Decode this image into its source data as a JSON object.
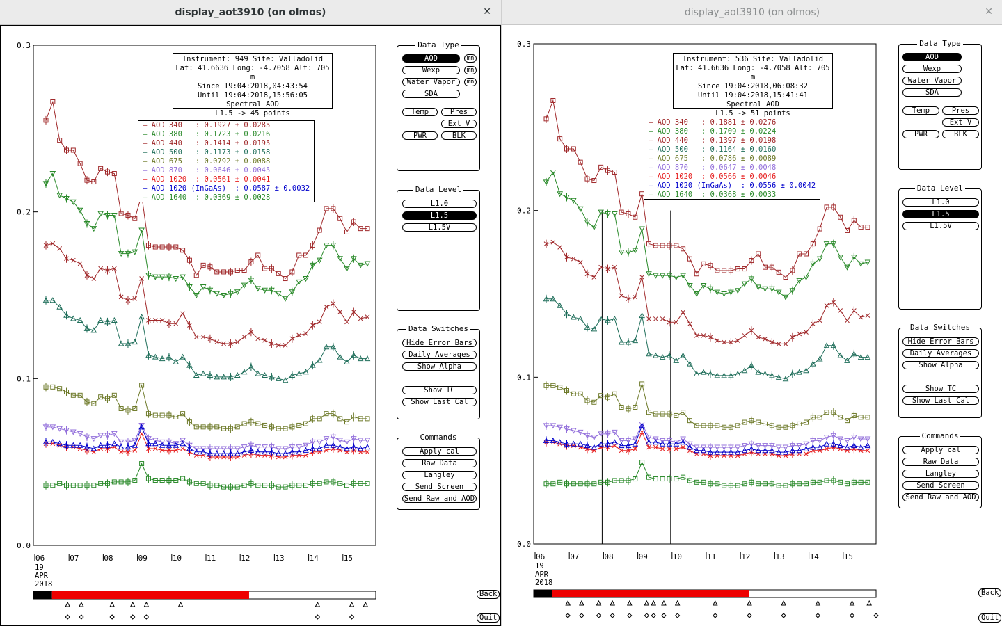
{
  "windows": [
    {
      "title": "display_aot3910 (on olmos)",
      "close_glyph": "✕",
      "info": [
        "Instrument: 949 Site: Valladolid",
        "Lat: 41.6636 Long: -4.7058 Alt: 705 m",
        "Since 19:04:2018,04:43:54",
        "Until 19:04:2018,15:56:05",
        "Spectral AOD",
        "L1.5 -> 45 points"
      ],
      "legend": [
        {
          "label": "AOD 340   : 0.1927 ± 0.0285",
          "color": "#a0282a"
        },
        {
          "label": "AOD 380   : 0.1723 ± 0.0216",
          "color": "#2a8a2a"
        },
        {
          "label": "AOD 440   : 0.1414 ± 0.0195",
          "color": "#a0282a"
        },
        {
          "label": "AOD 500   : 0.1173 ± 0.0158",
          "color": "#1f6e5a"
        },
        {
          "label": "AOD 675   : 0.0792 ± 0.0088",
          "color": "#6e7a2a"
        },
        {
          "label": "AOD 870   : 0.0646 ± 0.0045",
          "color": "#9370db"
        },
        {
          "label": "AOD 1020  : 0.0561 ± 0.0041",
          "color": "#e61e1e"
        },
        {
          "label": "AOD 1020 (InGaAs)  : 0.0587 ± 0.0032",
          "color": "#0000cc"
        },
        {
          "label": "AOD 1640  : 0.0369 ± 0.0028",
          "color": "#2a8a2a"
        }
      ],
      "yticks": [
        "0.3",
        "0.2",
        "0.1",
        "0.0"
      ],
      "xticks": [
        "06",
        "07",
        "08",
        "09",
        "10",
        "11",
        "12",
        "13",
        "14",
        "15"
      ],
      "date_lines": [
        "19",
        "APR",
        "2018"
      ],
      "vlines": [],
      "red_start": 0.03,
      "red_end": 0.63,
      "triangle_marks": [
        0.1,
        0.14,
        0.23,
        0.29,
        0.33,
        0.43,
        0.83,
        0.93,
        0.97
      ],
      "diamond_marks": [
        0.1,
        0.14,
        0.23,
        0.29,
        0.33,
        0.83,
        0.93
      ]
    },
    {
      "title": "display_aot3910 (on olmos)",
      "close_glyph": "✕",
      "info": [
        "Instrument: 536 Site: Valladolid",
        "Lat: 41.6636 Long: -4.7058 Alt: 705 m",
        "Since 19:04:2018,06:08:32",
        "Until 19:04:2018,15:41:41",
        "Spectral AOD",
        "L1.5 -> 51 points"
      ],
      "legend": [
        {
          "label": "AOD 340   : 0.1881 ± 0.0276",
          "color": "#a0282a"
        },
        {
          "label": "AOD 380   : 0.1709 ± 0.0224",
          "color": "#2a8a2a"
        },
        {
          "label": "AOD 440   : 0.1397 ± 0.0198",
          "color": "#a0282a"
        },
        {
          "label": "AOD 500   : 0.1164 ± 0.0160",
          "color": "#1f6e5a"
        },
        {
          "label": "AOD 675   : 0.0786 ± 0.0089",
          "color": "#6e7a2a"
        },
        {
          "label": "AOD 870   : 0.0647 ± 0.0048",
          "color": "#9370db"
        },
        {
          "label": "AOD 1020  : 0.0566 ± 0.0046",
          "color": "#e61e1e"
        },
        {
          "label": "AOD 1020 (InGaAs)  : 0.0556 ± 0.0042",
          "color": "#0000cc"
        },
        {
          "label": "AOD 1640  : 0.0368 ± 0.0033",
          "color": "#2a8a2a"
        }
      ],
      "yticks": [
        "0.3",
        "0.2",
        "0.1",
        "0.0"
      ],
      "xticks": [
        "06",
        "07",
        "08",
        "09",
        "10",
        "11",
        "12",
        "13",
        "14",
        "15"
      ],
      "date_lines": [
        "19",
        "APR",
        "2018"
      ],
      "vlines": [
        0.2,
        0.4
      ],
      "red_start": 0.03,
      "red_end": 0.63,
      "triangle_marks": [
        0.1,
        0.14,
        0.19,
        0.23,
        0.28,
        0.33,
        0.35,
        0.38,
        0.42,
        0.53,
        0.63,
        0.73,
        0.83,
        0.93,
        0.98
      ],
      "diamond_marks": [
        0.1,
        0.14,
        0.19,
        0.23,
        0.28,
        0.33,
        0.35,
        0.38,
        0.42,
        0.53,
        0.63,
        0.73,
        0.83,
        0.93,
        1.0
      ]
    }
  ],
  "series_shapes": [
    {
      "name": "340",
      "color": "#a0282a",
      "marker": "square",
      "values": [
        0.255,
        0.266,
        0.243,
        0.237,
        0.237,
        0.229,
        0.219,
        0.218,
        0.226,
        0.224,
        0.223,
        0.199,
        0.198,
        0.196,
        0.21,
        0.18,
        0.179,
        0.179,
        0.179,
        0.179,
        0.177,
        0.171,
        0.162,
        0.168,
        0.167,
        0.164,
        0.164,
        0.164,
        0.165,
        0.165,
        0.17,
        0.174,
        0.166,
        0.166,
        0.163,
        0.16,
        0.164,
        0.174,
        0.174,
        0.18,
        0.189,
        0.202,
        0.202,
        0.196,
        0.188,
        0.194,
        0.19,
        0.19
      ]
    },
    {
      "name": "380",
      "color": "#2a8a2a",
      "marker": "tri-down",
      "values": [
        0.217,
        0.223,
        0.21,
        0.208,
        0.206,
        0.201,
        0.193,
        0.19,
        0.199,
        0.198,
        0.198,
        0.175,
        0.175,
        0.176,
        0.189,
        0.162,
        0.161,
        0.161,
        0.161,
        0.16,
        0.161,
        0.155,
        0.15,
        0.155,
        0.153,
        0.151,
        0.15,
        0.151,
        0.152,
        0.156,
        0.159,
        0.154,
        0.153,
        0.153,
        0.151,
        0.148,
        0.152,
        0.158,
        0.16,
        0.168,
        0.171,
        0.18,
        0.18,
        0.172,
        0.166,
        0.172,
        0.168,
        0.169
      ]
    },
    {
      "name": "440",
      "color": "#a0282a",
      "marker": "x",
      "values": [
        0.18,
        0.181,
        0.178,
        0.172,
        0.171,
        0.169,
        0.162,
        0.16,
        0.166,
        0.165,
        0.166,
        0.149,
        0.147,
        0.148,
        0.16,
        0.135,
        0.135,
        0.135,
        0.133,
        0.133,
        0.139,
        0.132,
        0.125,
        0.125,
        0.124,
        0.122,
        0.121,
        0.121,
        0.122,
        0.125,
        0.128,
        0.124,
        0.123,
        0.121,
        0.12,
        0.12,
        0.124,
        0.126,
        0.127,
        0.132,
        0.134,
        0.143,
        0.145,
        0.14,
        0.134,
        0.14,
        0.136,
        0.137
      ]
    },
    {
      "name": "500",
      "color": "#1f6e5a",
      "marker": "tri-up",
      "values": [
        0.147,
        0.147,
        0.143,
        0.138,
        0.136,
        0.135,
        0.13,
        0.129,
        0.135,
        0.134,
        0.135,
        0.121,
        0.121,
        0.122,
        0.137,
        0.114,
        0.113,
        0.112,
        0.113,
        0.11,
        0.113,
        0.108,
        0.102,
        0.103,
        0.102,
        0.101,
        0.101,
        0.101,
        0.102,
        0.104,
        0.107,
        0.103,
        0.102,
        0.101,
        0.1,
        0.099,
        0.102,
        0.103,
        0.104,
        0.108,
        0.111,
        0.119,
        0.119,
        0.113,
        0.11,
        0.114,
        0.112,
        0.112
      ]
    },
    {
      "name": "675",
      "color": "#6e7a2a",
      "marker": "square",
      "values": [
        0.095,
        0.095,
        0.094,
        0.092,
        0.09,
        0.09,
        0.086,
        0.085,
        0.089,
        0.088,
        0.09,
        0.082,
        0.081,
        0.082,
        0.096,
        0.079,
        0.078,
        0.078,
        0.078,
        0.077,
        0.079,
        0.074,
        0.071,
        0.071,
        0.071,
        0.071,
        0.07,
        0.07,
        0.071,
        0.073,
        0.074,
        0.073,
        0.072,
        0.071,
        0.07,
        0.07,
        0.071,
        0.072,
        0.073,
        0.076,
        0.076,
        0.079,
        0.079,
        0.076,
        0.074,
        0.077,
        0.076,
        0.076
      ]
    },
    {
      "name": "870",
      "color": "#9370db",
      "marker": "tri-down",
      "values": [
        0.071,
        0.071,
        0.07,
        0.069,
        0.068,
        0.067,
        0.065,
        0.064,
        0.066,
        0.066,
        0.067,
        0.062,
        0.062,
        0.063,
        0.072,
        0.064,
        0.063,
        0.062,
        0.062,
        0.061,
        0.063,
        0.06,
        0.058,
        0.058,
        0.058,
        0.058,
        0.058,
        0.058,
        0.058,
        0.059,
        0.06,
        0.059,
        0.059,
        0.059,
        0.058,
        0.058,
        0.059,
        0.059,
        0.06,
        0.062,
        0.062,
        0.064,
        0.065,
        0.063,
        0.062,
        0.064,
        0.063,
        0.063
      ]
    },
    {
      "name": "1020",
      "color": "#e61e1e",
      "marker": "x",
      "values": [
        0.061,
        0.061,
        0.06,
        0.059,
        0.059,
        0.058,
        0.057,
        0.056,
        0.058,
        0.058,
        0.059,
        0.056,
        0.056,
        0.057,
        0.067,
        0.058,
        0.058,
        0.057,
        0.057,
        0.057,
        0.058,
        0.056,
        0.054,
        0.054,
        0.053,
        0.053,
        0.053,
        0.053,
        0.053,
        0.054,
        0.055,
        0.054,
        0.054,
        0.054,
        0.053,
        0.053,
        0.054,
        0.054,
        0.054,
        0.056,
        0.056,
        0.057,
        0.058,
        0.057,
        0.056,
        0.057,
        0.056,
        0.056
      ]
    },
    {
      "name": "1020i",
      "color": "#0000cc",
      "marker": "tri-up",
      "values": [
        0.062,
        0.062,
        0.061,
        0.06,
        0.06,
        0.06,
        0.059,
        0.058,
        0.06,
        0.06,
        0.061,
        0.059,
        0.059,
        0.06,
        0.071,
        0.061,
        0.061,
        0.06,
        0.06,
        0.06,
        0.061,
        0.058,
        0.056,
        0.056,
        0.055,
        0.055,
        0.055,
        0.055,
        0.055,
        0.056,
        0.057,
        0.056,
        0.056,
        0.056,
        0.055,
        0.055,
        0.056,
        0.056,
        0.057,
        0.058,
        0.058,
        0.06,
        0.06,
        0.059,
        0.058,
        0.059,
        0.058,
        0.059
      ]
    },
    {
      "name": "1640",
      "color": "#2a8a2a",
      "marker": "square",
      "values": [
        0.036,
        0.036,
        0.037,
        0.036,
        0.036,
        0.036,
        0.036,
        0.036,
        0.037,
        0.037,
        0.038,
        0.038,
        0.038,
        0.039,
        0.049,
        0.04,
        0.039,
        0.039,
        0.039,
        0.039,
        0.04,
        0.038,
        0.037,
        0.037,
        0.036,
        0.036,
        0.035,
        0.035,
        0.035,
        0.036,
        0.037,
        0.036,
        0.036,
        0.036,
        0.035,
        0.035,
        0.036,
        0.036,
        0.036,
        0.037,
        0.037,
        0.038,
        0.038,
        0.037,
        0.036,
        0.037,
        0.037,
        0.037
      ]
    }
  ],
  "panels": {
    "data_type": {
      "title": "Data Type",
      "aod": "AOD",
      "wexp": "Wexp",
      "water_vapor": "Water Vapor",
      "sda": "SDA",
      "temp": "Temp",
      "pres": "Pres",
      "ext_v": "Ext V",
      "pwr": "PWR",
      "blk": "BLK",
      "mn": "mn"
    },
    "data_level": {
      "title": "Data Level",
      "l10": "L1.0",
      "l15": "L1.5",
      "l15v": "L1.5V"
    },
    "data_switches": {
      "title": "Data Switches",
      "hide_error_bars": "Hide Error Bars",
      "daily_averages": "Daily Averages",
      "show_alpha": "Show Alpha",
      "show_tc": "Show TC",
      "show_last_cal": "Show Last Cal"
    },
    "commands": {
      "title": "Commands",
      "apply_cal": "Apply cal",
      "raw_data": "Raw Data",
      "langley": "Langley",
      "send_screen": "Send Screen",
      "send_raw_and_aod": "Send Raw and AOD"
    }
  },
  "corner": {
    "back": "Back",
    "quit": "Quit"
  }
}
